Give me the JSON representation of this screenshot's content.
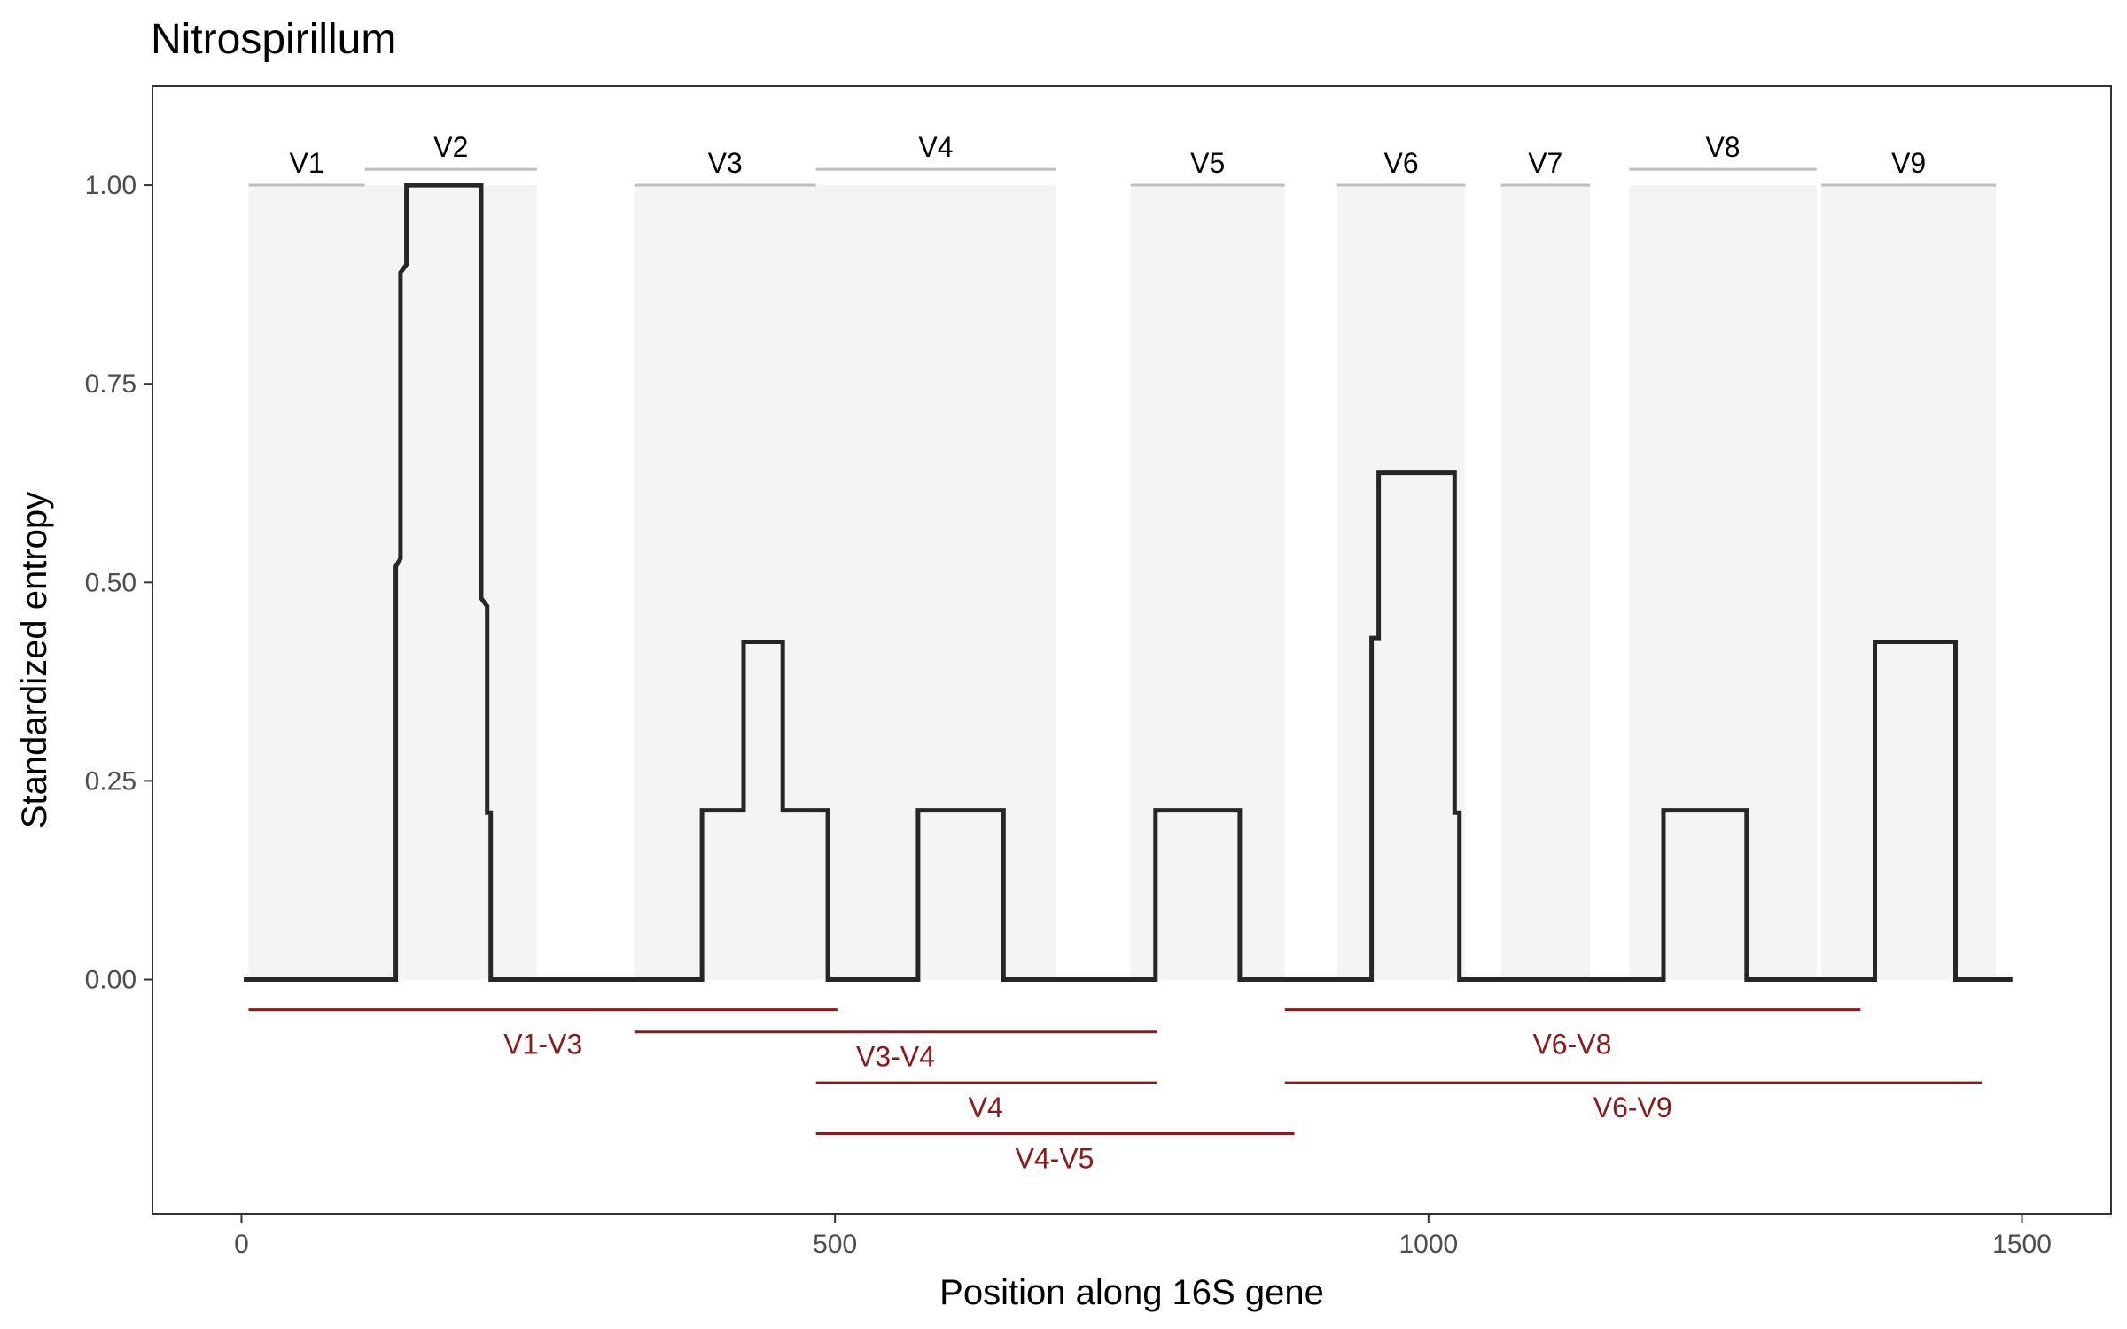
{
  "chart_data": {
    "type": "line",
    "title": "Nitrospirillum",
    "xlabel": "Position along 16S gene",
    "ylabel": "Standardized entropy",
    "xlim": [
      -75,
      1575
    ],
    "ylim": [
      -0.295,
      1.125
    ],
    "x_ticks": [
      {
        "value": 0,
        "label": "0"
      },
      {
        "value": 500,
        "label": "500"
      },
      {
        "value": 1000,
        "label": "1000"
      },
      {
        "value": 1500,
        "label": "1500"
      }
    ],
    "y_ticks": [
      {
        "value": 0,
        "label": "0.00"
      },
      {
        "value": 0.25,
        "label": "0.25"
      },
      {
        "value": 0.5,
        "label": "0.50"
      },
      {
        "value": 0.75,
        "label": "0.75"
      },
      {
        "value": 1.0,
        "label": "1.00"
      }
    ],
    "grid": false,
    "variable_regions": [
      {
        "name": "V1",
        "start": 6,
        "end": 104,
        "line_y": 1.0
      },
      {
        "name": "V2",
        "start": 104,
        "end": 249,
        "line_y": 1.02
      },
      {
        "name": "V3",
        "start": 331,
        "end": 484,
        "line_y": 1.0
      },
      {
        "name": "V4",
        "start": 484,
        "end": 686,
        "line_y": 1.02
      },
      {
        "name": "V5",
        "start": 749,
        "end": 879,
        "line_y": 1.0
      },
      {
        "name": "V6",
        "start": 923,
        "end": 1031,
        "line_y": 1.0
      },
      {
        "name": "V7",
        "start": 1061,
        "end": 1136,
        "line_y": 1.0
      },
      {
        "name": "V8",
        "start": 1169,
        "end": 1327,
        "line_y": 1.02
      },
      {
        "name": "V9",
        "start": 1331,
        "end": 1478,
        "line_y": 1.0
      }
    ],
    "highlight_regions": [
      {
        "start": 6,
        "end": 104
      },
      {
        "start": 104,
        "end": 249
      },
      {
        "start": 331,
        "end": 502
      },
      {
        "start": 484,
        "end": 686
      },
      {
        "start": 749,
        "end": 879
      },
      {
        "start": 923,
        "end": 1031
      },
      {
        "start": 1061,
        "end": 1136
      },
      {
        "start": 1169,
        "end": 1327
      },
      {
        "start": 1331,
        "end": 1478
      }
    ],
    "series": [
      {
        "x": [
          2,
          130,
          130,
          134,
          134,
          139,
          139,
          140,
          140,
          202,
          202,
          207,
          207,
          210,
          210,
          388,
          388,
          423,
          423,
          456,
          456,
          494,
          494,
          570,
          570,
          642,
          642,
          770,
          770,
          841,
          841,
          952,
          952,
          958,
          958,
          1022,
          1022,
          1026,
          1026,
          1198,
          1198,
          1268,
          1268,
          1376,
          1376,
          1444,
          1444,
          1492
        ],
        "y": [
          0,
          0,
          0.52,
          0.53,
          0.89,
          0.9,
          1.0,
          1.0,
          1.0,
          1.0,
          0.48,
          0.47,
          0.21,
          0.21,
          0,
          0,
          0.213,
          0.213,
          0.425,
          0.425,
          0.213,
          0.213,
          0,
          0,
          0.213,
          0.213,
          0,
          0,
          0.213,
          0.213,
          0,
          0,
          0.43,
          0.43,
          0.638,
          0.638,
          0.21,
          0.21,
          0,
          0,
          0.213,
          0.213,
          0,
          0,
          0.425,
          0.425,
          0,
          0
        ]
      }
    ],
    "amplicons": [
      {
        "name": "V1-V3",
        "start": 6,
        "end": 502,
        "line_y": -0.038,
        "label_x": 254,
        "label_y": -0.08
      },
      {
        "name": "V3-V4",
        "start": 331,
        "end": 771,
        "line_y": -0.066,
        "label_x": 551,
        "label_y": -0.096
      },
      {
        "name": "V4",
        "start": 484,
        "end": 771,
        "line_y": -0.13,
        "label_x": 627,
        "label_y": -0.16
      },
      {
        "name": "V4-V5",
        "start": 484,
        "end": 887,
        "line_y": -0.194,
        "label_x": 685,
        "label_y": -0.224
      },
      {
        "name": "V6-V8",
        "start": 879,
        "end": 1364,
        "line_y": -0.038,
        "label_x": 1121,
        "label_y": -0.08
      },
      {
        "name": "V6-V9",
        "start": 879,
        "end": 1466,
        "line_y": -0.13,
        "label_x": 1172,
        "label_y": -0.16
      }
    ],
    "colors": {
      "line": "#262626",
      "region_fill": "#f2f2f2",
      "region_line": "#bebebe",
      "amplicon": "#8b1a1a",
      "axis": "#333333",
      "tick_label": "#4d4d4d"
    }
  }
}
